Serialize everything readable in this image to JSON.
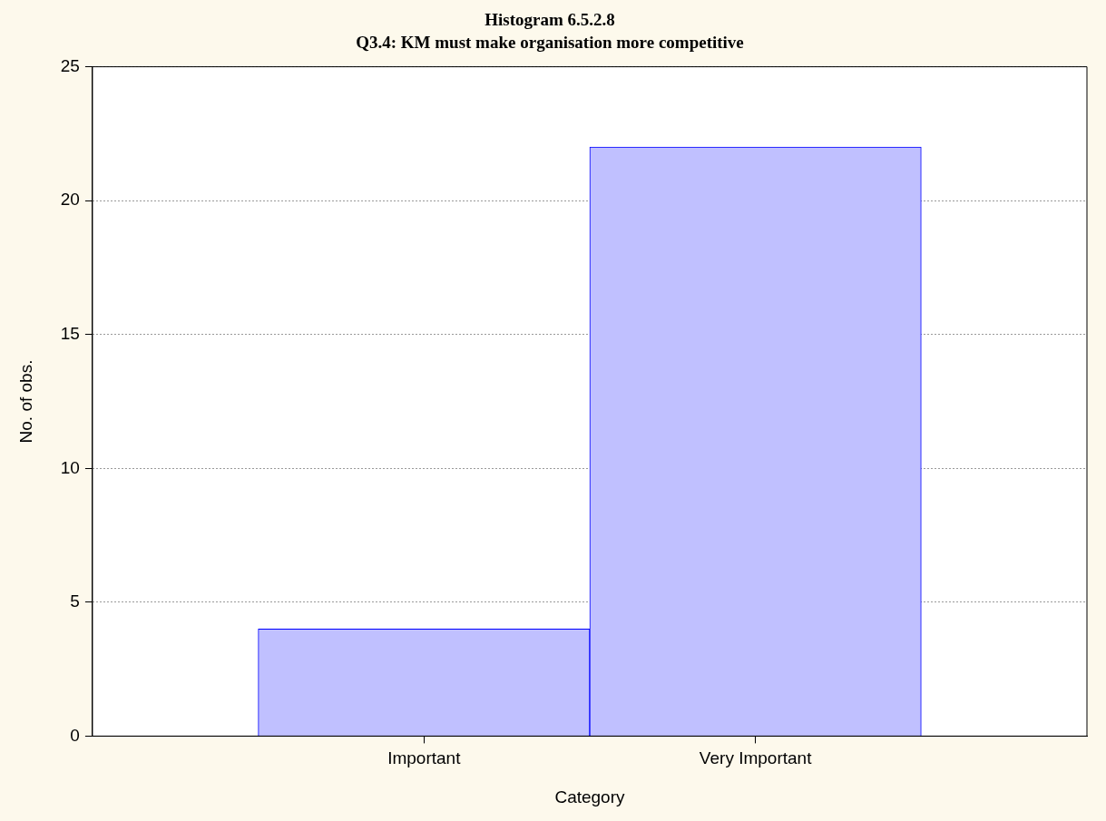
{
  "chart_data": {
    "type": "bar",
    "title": "Histogram 6.5.2.8",
    "subtitle": "Q3.4: KM must make organisation more competitive",
    "xlabel": "Category",
    "ylabel": "No. of obs.",
    "categories": [
      "Important",
      "Very Important"
    ],
    "series": [
      {
        "color": "#c0c0ff",
        "values": [
          4,
          22
        ]
      }
    ],
    "ylim": [
      0,
      25
    ],
    "yticks": [
      0,
      5,
      10,
      15,
      20,
      25
    ],
    "grid": "y",
    "legend": false
  }
}
